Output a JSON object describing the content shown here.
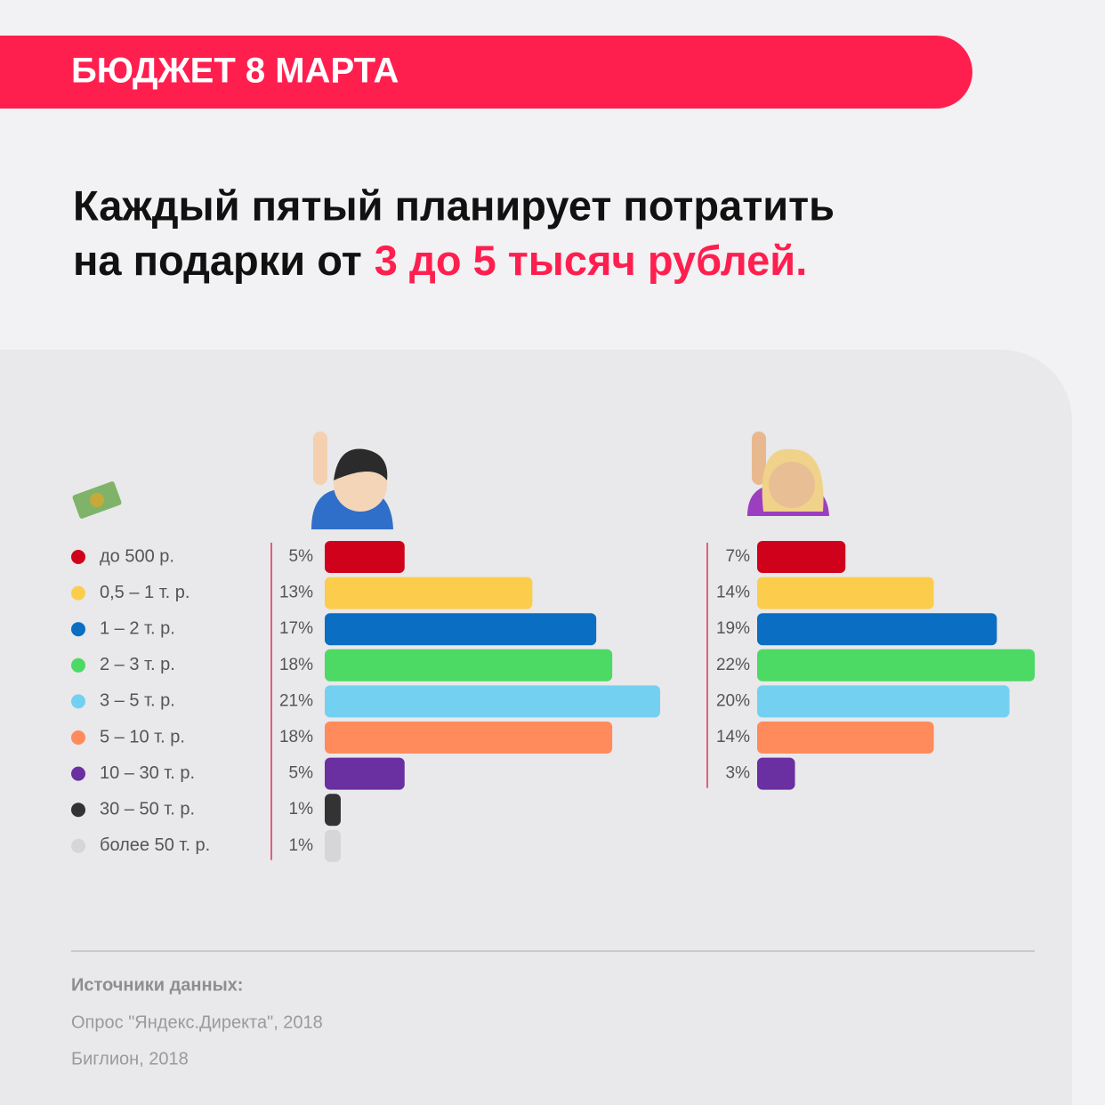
{
  "header": {
    "title": "БЮДЖЕТ 8 МАРТА",
    "headline": {
      "line1": "Каждый пятый планирует потратить",
      "line2": "на подарки от",
      "highlight": "3 до 5 тысяч рублей."
    }
  },
  "chart_data": {
    "type": "bar",
    "orientation": "horizontal",
    "categories": [
      "до 500 р.",
      "0,5 – 1 т. р.",
      "1 – 2 т. р.",
      "2 – 3 т. р.",
      "3 – 5 т. р.",
      "5 – 10 т. р.",
      "10 – 30 т. р.",
      "30 – 50 т. р.",
      "более 50 т. р."
    ],
    "colors": [
      "#d0021b",
      "#fccd4c",
      "#0a6ec2",
      "#4cd964",
      "#74d0f1",
      "#ff8a5c",
      "#6a2fa0",
      "#333333",
      "#d6d6d8"
    ],
    "series": [
      {
        "values": [
          5,
          13,
          17,
          18,
          21,
          18,
          5,
          1,
          1
        ],
        "value_labels": [
          "5%",
          "13%",
          "17%",
          "18%",
          "21%",
          "18%",
          "5%",
          "1%",
          "1%"
        ],
        "xlim": [
          0,
          21
        ]
      },
      {
        "values": [
          7,
          14,
          19,
          22,
          20,
          14,
          3,
          null,
          null
        ],
        "value_labels": [
          "7%",
          "14%",
          "19%",
          "22%",
          "20%",
          "14%",
          "3%",
          null,
          null
        ],
        "xlim": [
          0,
          22
        ]
      }
    ]
  },
  "sources": {
    "title": "Источники данных:",
    "items": [
      "Опрос \"Яндекс.Директа\", 2018",
      "Биглион, 2018"
    ]
  }
}
